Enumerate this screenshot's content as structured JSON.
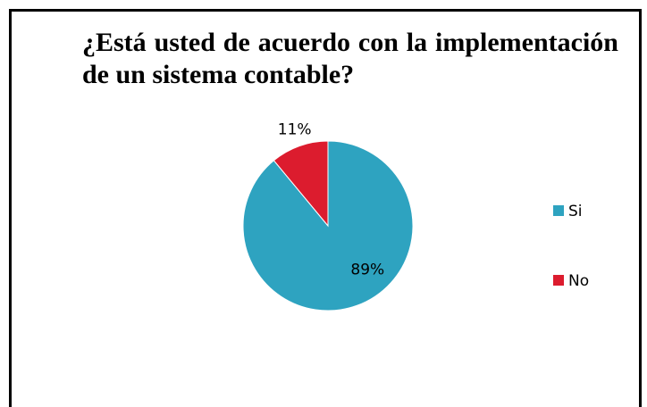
{
  "chart_data": {
    "type": "pie",
    "title": "¿Está usted de acuerdo con la implementación de un sistema contable?",
    "categories": [
      "Si",
      "No"
    ],
    "values": [
      89,
      11
    ],
    "value_labels": [
      "89%",
      "11%"
    ],
    "colors": [
      "#2ea3c0",
      "#dc1c2e"
    ],
    "legend": "right"
  }
}
